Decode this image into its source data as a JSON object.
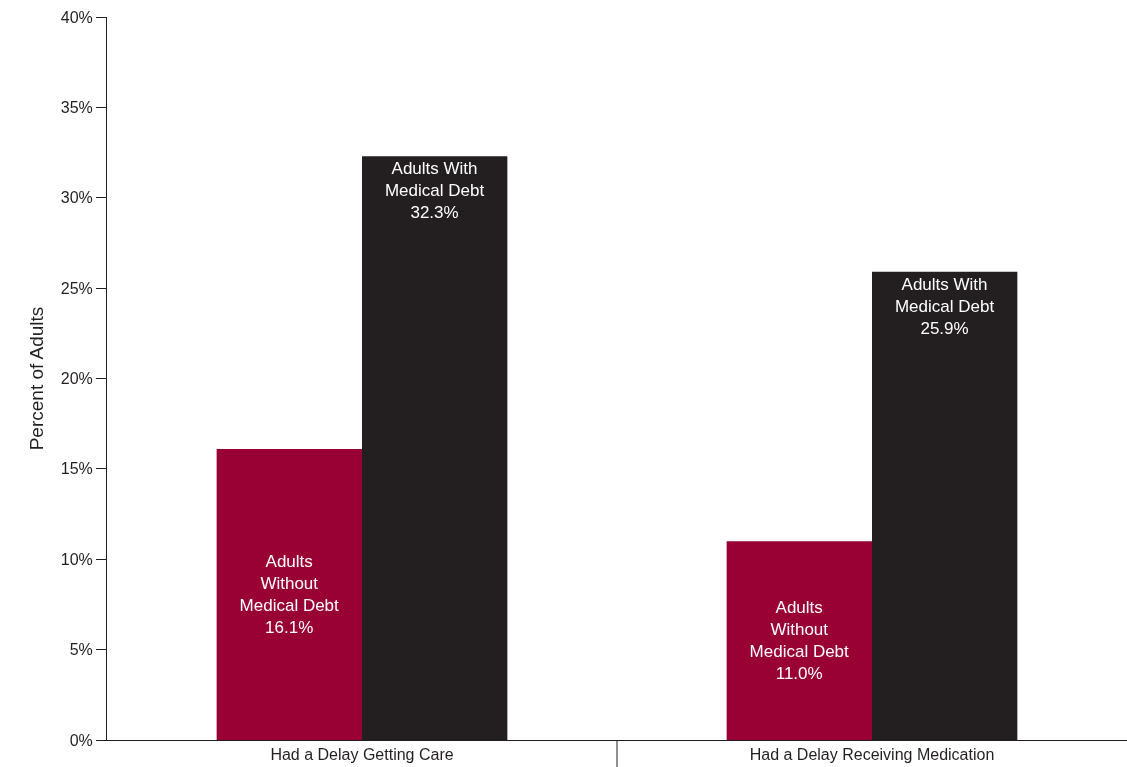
{
  "chart_data": {
    "type": "bar",
    "ylabel": "Percent of Adults",
    "categories": [
      "Had a Delay Getting Care",
      "Had a Delay Receiving Medication"
    ],
    "series": [
      {
        "name": "Adults Without Medical Debt",
        "color": "#990033",
        "values": [
          16.1,
          11.0
        ],
        "value_labels": [
          "16.1%",
          "11.0%"
        ]
      },
      {
        "name": "Adults With Medical Debt",
        "color": "#231f20",
        "values": [
          32.3,
          25.9
        ],
        "value_labels": [
          "32.3%",
          "25.9%"
        ]
      }
    ],
    "ylim": [
      0,
      40
    ],
    "yticks": [
      {
        "value": 0,
        "label": "0%"
      },
      {
        "value": 5,
        "label": "5%"
      },
      {
        "value": 10,
        "label": "10%"
      },
      {
        "value": 15,
        "label": "15%"
      },
      {
        "value": 20,
        "label": "20%"
      },
      {
        "value": 25,
        "label": "25%"
      },
      {
        "value": 30,
        "label": "30%"
      },
      {
        "value": 35,
        "label": "35%"
      },
      {
        "value": 40,
        "label": "40%"
      }
    ],
    "legend": false
  }
}
